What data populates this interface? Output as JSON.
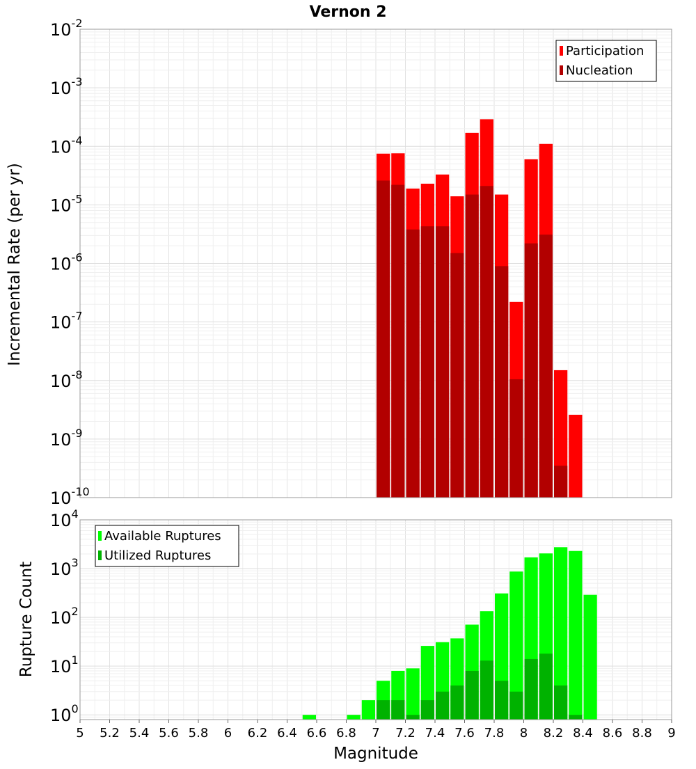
{
  "chart_data": [
    {
      "type": "bar",
      "title": "Vernon 2",
      "xlabel": "",
      "ylabel": "Incremental Rate (per yr)",
      "yscale": "log",
      "ylim": [
        1e-10,
        0.01
      ],
      "xlim": [
        5,
        9
      ],
      "grid": true,
      "legend_position": "top-right",
      "ytick_exponents": [
        "-10",
        "-9",
        "-8",
        "-7",
        "-6",
        "-5",
        "-4",
        "-3",
        "-2"
      ],
      "ytick_base": "10",
      "bin_width": 0.1,
      "series": [
        {
          "name": "Participation",
          "color": "#ff0000",
          "x": [
            7.05,
            7.15,
            7.25,
            7.35,
            7.45,
            7.55,
            7.65,
            7.75,
            7.85,
            7.95,
            8.05,
            8.15,
            8.25,
            8.35
          ],
          "values": [
            7.5e-05,
            7.6e-05,
            1.9e-05,
            2.3e-05,
            3.3e-05,
            1.4e-05,
            0.00017,
            0.00029,
            1.5e-05,
            2.2e-07,
            6e-05,
            0.00011,
            1.5e-08,
            2.6e-09
          ]
        },
        {
          "name": "Nucleation",
          "color": "#b20000",
          "x": [
            7.05,
            7.15,
            7.25,
            7.35,
            7.45,
            7.55,
            7.65,
            7.75,
            7.85,
            7.95,
            8.05,
            8.15,
            8.25,
            8.35
          ],
          "values": [
            2.6e-05,
            2.2e-05,
            3.8e-06,
            4.3e-06,
            4.3e-06,
            1.5e-06,
            1.5e-05,
            2.1e-05,
            9e-07,
            1.05e-08,
            2.2e-06,
            3.1e-06,
            3.5e-10,
            1e-10
          ]
        }
      ]
    },
    {
      "type": "bar",
      "title": "",
      "xlabel": "Magnitude",
      "ylabel": "Rupture Count",
      "yscale": "log",
      "ylim": [
        0.8,
        10000
      ],
      "xlim": [
        5,
        9
      ],
      "grid": true,
      "legend_position": "top-left",
      "ytick_exponents": [
        "0",
        "1",
        "2",
        "3",
        "4"
      ],
      "ytick_base": "10",
      "xticks": [
        "5",
        "5.2",
        "5.4",
        "5.6",
        "5.8",
        "6",
        "6.2",
        "6.4",
        "6.6",
        "6.8",
        "7",
        "7.2",
        "7.4",
        "7.6",
        "7.8",
        "8",
        "8.2",
        "8.4",
        "8.6",
        "8.8",
        "9"
      ],
      "bin_width": 0.1,
      "series": [
        {
          "name": "Available Ruptures",
          "color": "#00ff00",
          "x": [
            6.55,
            6.85,
            6.95,
            7.05,
            7.15,
            7.25,
            7.35,
            7.45,
            7.55,
            7.65,
            7.75,
            7.85,
            7.95,
            8.05,
            8.15,
            8.25,
            8.35,
            8.45
          ],
          "values": [
            1,
            1,
            2,
            5,
            8,
            9,
            26,
            31,
            37,
            71,
            134,
            310,
            870,
            1700,
            2050,
            2750,
            2300,
            290
          ]
        },
        {
          "name": "Utilized Ruptures",
          "color": "#00b200",
          "x": [
            7.05,
            7.15,
            7.25,
            7.35,
            7.45,
            7.55,
            7.65,
            7.75,
            7.85,
            7.95,
            8.05,
            8.15,
            8.25,
            8.35
          ],
          "values": [
            2,
            2,
            1,
            2,
            3,
            4,
            8,
            13,
            5,
            3,
            14,
            18,
            4,
            1
          ]
        }
      ]
    }
  ]
}
